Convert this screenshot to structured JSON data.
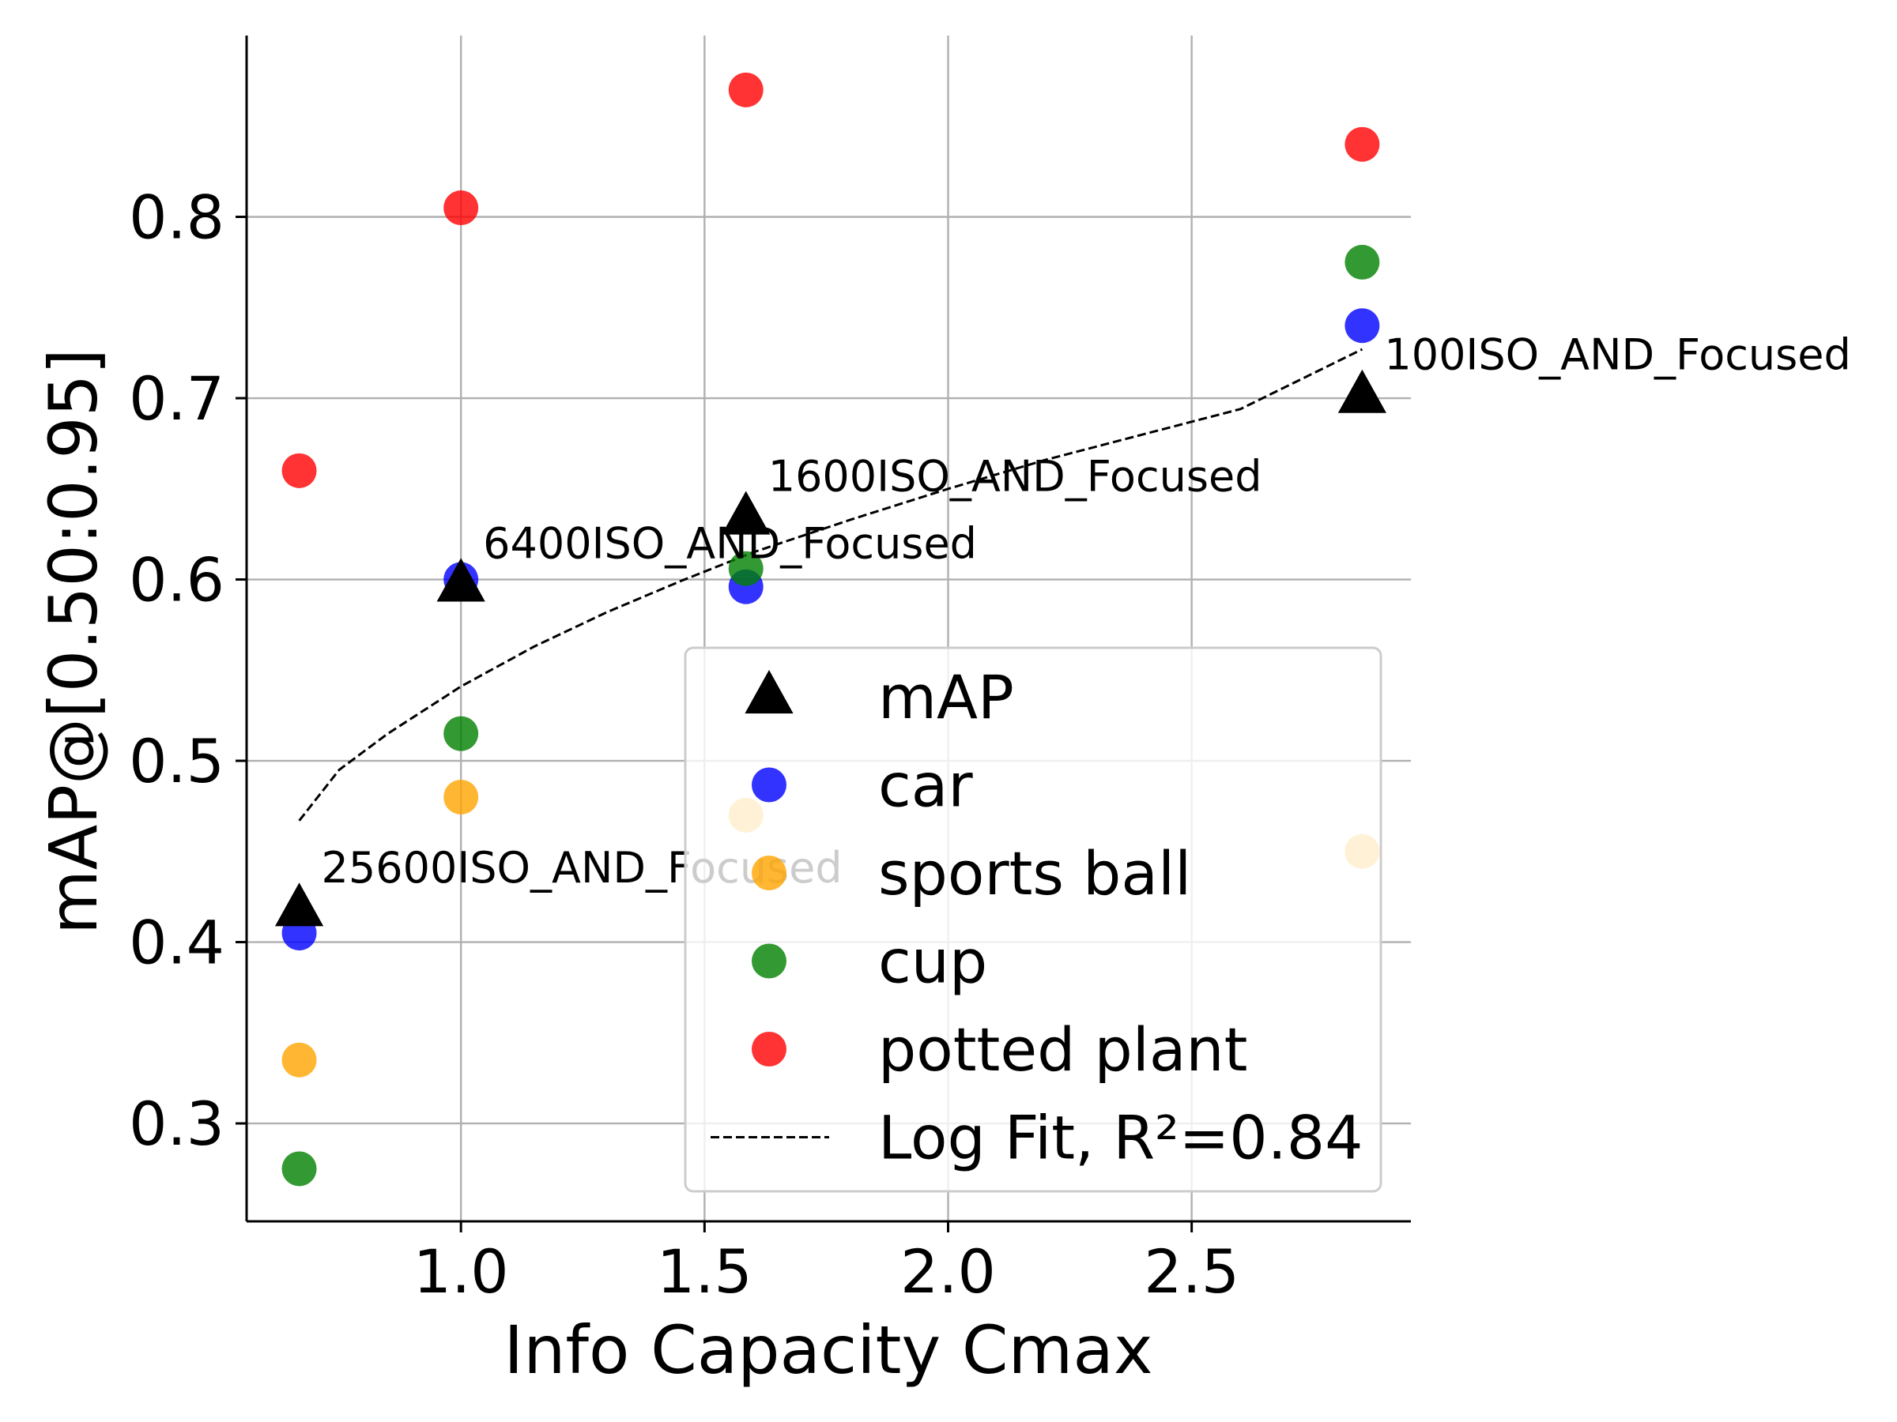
{
  "chart_data": {
    "type": "scatter",
    "xlabel": "Info Capacity Cmax",
    "ylabel": "mAP@[0.50:0.95]",
    "xlim": [
      0.56,
      2.95
    ],
    "ylim": [
      0.246,
      0.9
    ],
    "xticks": [
      1.0,
      1.5,
      2.0,
      2.5
    ],
    "xtick_labels": [
      "1.0",
      "1.5",
      "2.0",
      "2.5"
    ],
    "yticks": [
      0.3,
      0.4,
      0.5,
      0.6,
      0.7,
      0.8
    ],
    "ytick_labels": [
      "0.3",
      "0.4",
      "0.5",
      "0.6",
      "0.7",
      "0.8"
    ],
    "grid": true,
    "legend_position": "lower-right",
    "series": [
      {
        "name": "mAP",
        "marker": "triangle",
        "color": "#000000",
        "x": [
          0.668,
          1.0,
          1.585,
          2.85
        ],
        "y": [
          0.418,
          0.597,
          0.634,
          0.701
        ],
        "annotations": [
          "25600ISO_AND_Focused",
          "6400ISO_AND_Focused",
          "1600ISO_AND_Focused",
          "100ISO_AND_Focused"
        ]
      },
      {
        "name": "car",
        "marker": "circle",
        "color": "#0000ff",
        "x": [
          0.668,
          1.0,
          1.585,
          2.85
        ],
        "y": [
          0.405,
          0.6,
          0.596,
          0.74
        ]
      },
      {
        "name": "sports ball",
        "marker": "circle",
        "color": "#ffa500",
        "x": [
          0.668,
          1.0,
          1.585,
          2.85
        ],
        "y": [
          0.335,
          0.48,
          0.47,
          0.45
        ]
      },
      {
        "name": "cup",
        "marker": "circle",
        "color": "#008000",
        "x": [
          0.668,
          1.0,
          1.585,
          2.85
        ],
        "y": [
          0.275,
          0.515,
          0.606,
          0.775
        ]
      },
      {
        "name": "potted plant",
        "marker": "circle",
        "color": "#ff0000",
        "x": [
          0.668,
          1.0,
          1.585,
          2.85
        ],
        "y": [
          0.66,
          0.805,
          0.87,
          0.84
        ]
      }
    ],
    "fit": {
      "name": "Log Fit, R²=0.84",
      "style": "dashed",
      "color": "#000000",
      "x": [
        0.668,
        0.75,
        0.85,
        1.0,
        1.15,
        1.3,
        1.45,
        1.6,
        1.8,
        2.0,
        2.2,
        2.4,
        2.6,
        2.85
      ],
      "y": [
        0.467,
        0.495,
        0.515,
        0.541,
        0.563,
        0.582,
        0.599,
        0.615,
        0.633,
        0.65,
        0.666,
        0.68,
        0.694,
        0.727
      ]
    }
  }
}
